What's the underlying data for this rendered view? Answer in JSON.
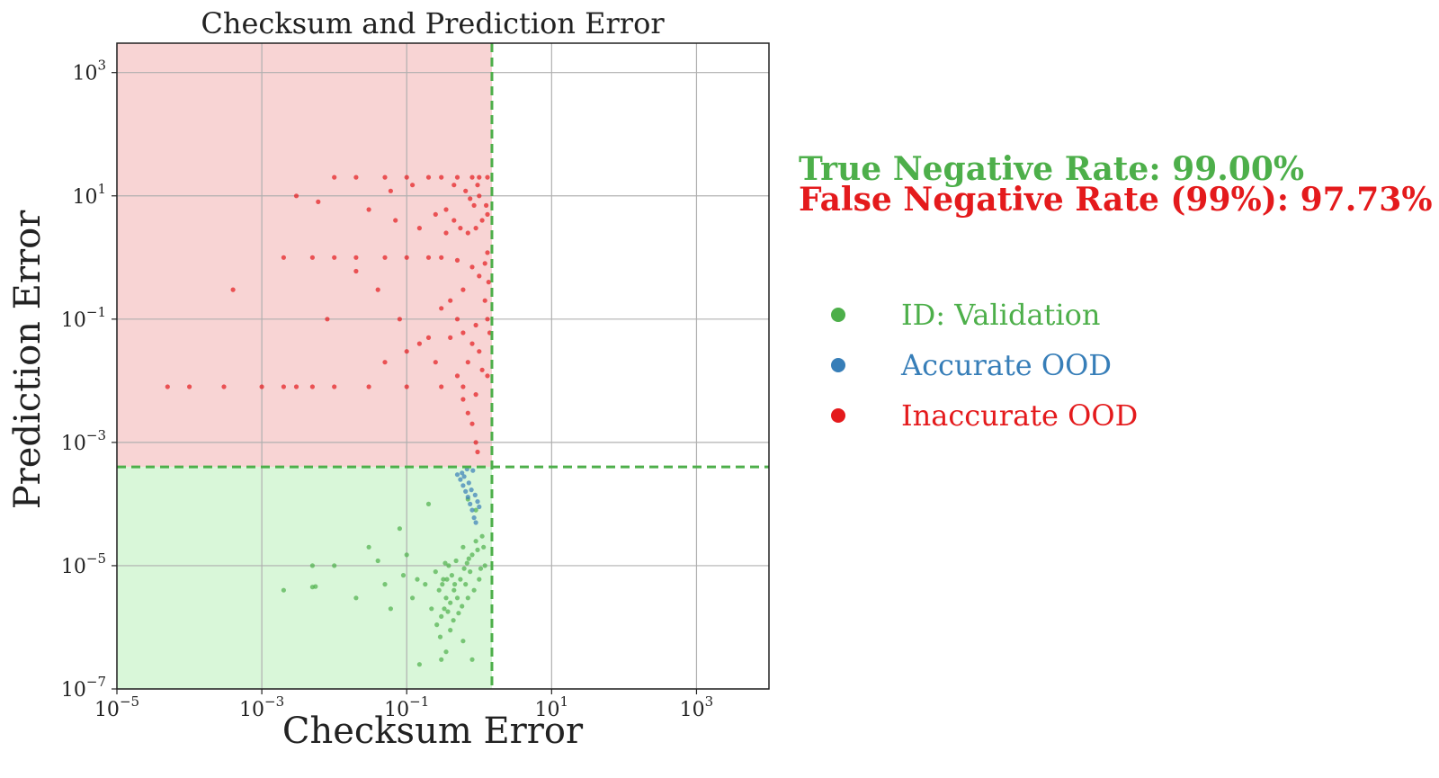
{
  "chart_data": {
    "type": "scatter",
    "title": "Checksum and Prediction Error",
    "xlabel": "Checksum Error",
    "ylabel": "Prediction Error",
    "xscale": "log",
    "yscale": "log",
    "xlim": [
      1e-05,
      10000
    ],
    "ylim": [
      1e-07,
      3000
    ],
    "x_ticks": [
      {
        "value": 1e-05,
        "base": "10",
        "exp": "−5"
      },
      {
        "value": 0.001,
        "base": "10",
        "exp": "−3"
      },
      {
        "value": 0.1,
        "base": "10",
        "exp": "−1"
      },
      {
        "value": 10,
        "base": "10",
        "exp": "1"
      },
      {
        "value": 1000,
        "base": "10",
        "exp": "3"
      }
    ],
    "y_ticks": [
      {
        "value": 1e-07,
        "base": "10",
        "exp": "−7"
      },
      {
        "value": 1e-05,
        "base": "10",
        "exp": "−5"
      },
      {
        "value": 0.001,
        "base": "10",
        "exp": "−3"
      },
      {
        "value": 0.1,
        "base": "10",
        "exp": "−1"
      },
      {
        "value": 10,
        "base": "10",
        "exp": "1"
      },
      {
        "value": 1000,
        "base": "10",
        "exp": "3"
      }
    ],
    "grid": true,
    "threshold_x": 1.5,
    "threshold_y": 0.0004,
    "regions": [
      {
        "name": "false-negative-region",
        "color": "#f8d4d4"
      },
      {
        "name": "true-negative-region",
        "color": "#d9f7d9"
      }
    ],
    "colors": {
      "validation": "#4daf4a",
      "accurate_ood": "#377eb8",
      "inaccurate_ood": "#e41a1c",
      "threshold": "#4daf4a"
    },
    "series": [
      {
        "name": "ID: Validation",
        "key": "validation",
        "points": [
          [
            0.12,
            3e-06
          ],
          [
            0.18,
            5e-06
          ],
          [
            0.22,
            2e-06
          ],
          [
            0.25,
            8e-06
          ],
          [
            0.28,
            4e-06
          ],
          [
            0.3,
            1.5e-06
          ],
          [
            0.32,
            6e-06
          ],
          [
            0.35,
            3e-06
          ],
          [
            0.38,
            1e-05
          ],
          [
            0.4,
            2.5e-06
          ],
          [
            0.42,
            7e-06
          ],
          [
            0.45,
            4e-06
          ],
          [
            0.48,
            1.2e-05
          ],
          [
            0.5,
            3e-06
          ],
          [
            0.55,
            6e-06
          ],
          [
            0.6,
            2e-05
          ],
          [
            0.65,
            5e-06
          ],
          [
            0.7,
            3e-06
          ],
          [
            0.75,
            8e-06
          ],
          [
            0.8,
            1.5e-05
          ],
          [
            0.85,
            4e-06
          ],
          [
            0.9,
            2.5e-05
          ],
          [
            1.0,
            6e-06
          ],
          [
            1.1,
            3e-05
          ],
          [
            1.2,
            1e-05
          ],
          [
            0.35,
            4e-07
          ],
          [
            0.3,
            3e-07
          ],
          [
            0.15,
            2.5e-07
          ],
          [
            0.8,
            3e-07
          ],
          [
            0.6,
            6e-07
          ],
          [
            0.005,
            4.5e-06
          ],
          [
            0.0055,
            4.6e-06
          ],
          [
            0.002,
            4e-06
          ],
          [
            0.01,
            1e-05
          ],
          [
            0.03,
            2e-05
          ],
          [
            0.05,
            5e-06
          ],
          [
            0.08,
            4e-05
          ],
          [
            0.1,
            1.5e-05
          ],
          [
            0.2,
            0.0001
          ],
          [
            0.7,
            0.00012
          ],
          [
            0.9,
            8e-05
          ],
          [
            0.33,
            2e-06
          ],
          [
            0.37,
            1.8e-06
          ],
          [
            0.4,
            9e-07
          ],
          [
            0.44,
            1.3e-06
          ],
          [
            0.52,
            1.7e-06
          ],
          [
            0.58,
            2.2e-06
          ],
          [
            0.62,
            9e-06
          ],
          [
            0.68,
            1.1e-05
          ],
          [
            0.72,
            1.3e-05
          ],
          [
            0.95,
            1.8e-05
          ],
          [
            1.05,
            9e-06
          ],
          [
            1.15,
            2e-05
          ],
          [
            0.26,
            1.1e-06
          ],
          [
            0.29,
            7e-07
          ],
          [
            0.31,
            5e-06
          ],
          [
            0.34,
            1.1e-05
          ],
          [
            0.36,
            6e-06
          ],
          [
            0.46,
            5e-06
          ],
          [
            0.005,
            1e-05
          ],
          [
            0.02,
            3e-06
          ],
          [
            0.04,
            1.2e-05
          ],
          [
            0.06,
            2e-06
          ],
          [
            0.09,
            7e-06
          ],
          [
            0.14,
            6e-06
          ]
        ]
      },
      {
        "name": "Accurate OOD",
        "key": "accurate_ood",
        "points": [
          [
            0.5,
            0.0003
          ],
          [
            0.55,
            0.00025
          ],
          [
            0.6,
            0.0002
          ],
          [
            0.65,
            0.00016
          ],
          [
            0.7,
            0.00013
          ],
          [
            0.75,
            0.0001
          ],
          [
            0.8,
            8e-05
          ],
          [
            0.85,
            6e-05
          ],
          [
            0.9,
            5e-05
          ],
          [
            0.58,
            0.00032
          ],
          [
            0.62,
            0.00028
          ],
          [
            0.72,
            0.00022
          ],
          [
            0.78,
            0.00017
          ],
          [
            0.88,
            0.00014
          ],
          [
            0.95,
            0.00011
          ],
          [
            1.0,
            9e-05
          ],
          [
            0.82,
            0.00035
          ],
          [
            0.68,
            0.00037
          ]
        ]
      },
      {
        "name": "Inaccurate OOD",
        "key": "inaccurate_ood",
        "points": [
          [
            0.0004,
            0.3
          ],
          [
            5e-05,
            0.008
          ],
          [
            0.0001,
            0.008
          ],
          [
            0.0003,
            0.008
          ],
          [
            0.001,
            0.008
          ],
          [
            0.002,
            0.008
          ],
          [
            0.003,
            0.008
          ],
          [
            0.005,
            0.008
          ],
          [
            0.01,
            0.008
          ],
          [
            0.03,
            0.008
          ],
          [
            0.1,
            0.008
          ],
          [
            0.3,
            0.008
          ],
          [
            0.6,
            0.008
          ],
          [
            0.9,
            0.006
          ],
          [
            0.002,
            1.0
          ],
          [
            0.005,
            1.0
          ],
          [
            0.01,
            1.0
          ],
          [
            0.02,
            1.0
          ],
          [
            0.05,
            1.0
          ],
          [
            0.1,
            1.0
          ],
          [
            0.2,
            1.0
          ],
          [
            0.3,
            1.0
          ],
          [
            0.5,
            0.9
          ],
          [
            0.8,
            0.7
          ],
          [
            1.0,
            0.5
          ],
          [
            1.2,
            0.8
          ],
          [
            1.3,
            1.2
          ],
          [
            0.01,
            20
          ],
          [
            0.02,
            20
          ],
          [
            0.05,
            20
          ],
          [
            0.1,
            20
          ],
          [
            0.2,
            20
          ],
          [
            0.3,
            20
          ],
          [
            0.5,
            20
          ],
          [
            0.8,
            20
          ],
          [
            1.0,
            20
          ],
          [
            1.3,
            20
          ],
          [
            0.003,
            10
          ],
          [
            0.006,
            8
          ],
          [
            0.03,
            6
          ],
          [
            0.07,
            4
          ],
          [
            0.15,
            3
          ],
          [
            0.35,
            2.5
          ],
          [
            0.45,
            4
          ],
          [
            0.55,
            3
          ],
          [
            0.7,
            2.5
          ],
          [
            0.9,
            3
          ],
          [
            1.1,
            4
          ],
          [
            1.3,
            5
          ],
          [
            0.6,
            0.06
          ],
          [
            0.8,
            0.04
          ],
          [
            1.0,
            0.03
          ],
          [
            0.5,
            0.1
          ],
          [
            0.4,
            0.2
          ],
          [
            0.3,
            0.15
          ],
          [
            0.2,
            0.05
          ],
          [
            0.1,
            0.03
          ],
          [
            0.05,
            0.02
          ],
          [
            0.7,
            0.02
          ],
          [
            1.1,
            0.015
          ],
          [
            0.9,
            0.08
          ],
          [
            1.2,
            0.2
          ],
          [
            1.3,
            0.1
          ],
          [
            0.6,
            0.3
          ],
          [
            0.4,
            0.05
          ],
          [
            0.8,
            0.002
          ],
          [
            0.9,
            0.001
          ],
          [
            0.95,
            0.0007
          ],
          [
            0.7,
            0.003
          ],
          [
            0.6,
            0.005
          ],
          [
            0.5,
            0.012
          ],
          [
            0.25,
            0.02
          ],
          [
            0.15,
            0.04
          ],
          [
            0.08,
            0.1
          ],
          [
            0.04,
            0.3
          ],
          [
            0.02,
            0.6
          ],
          [
            1.0,
            10
          ],
          [
            0.95,
            15
          ],
          [
            0.85,
            7
          ],
          [
            0.75,
            9
          ],
          [
            0.65,
            12
          ],
          [
            0.45,
            15
          ],
          [
            0.35,
            6
          ],
          [
            0.25,
            5
          ],
          [
            1.25,
            7
          ],
          [
            1.35,
            0.4
          ],
          [
            1.4,
            0.06
          ],
          [
            1.3,
            0.012
          ],
          [
            0.12,
            15
          ],
          [
            0.06,
            12
          ],
          [
            0.008,
            0.1
          ]
        ]
      }
    ],
    "legend": {
      "placement": "right",
      "items": [
        {
          "label": "ID: Validation",
          "key": "validation"
        },
        {
          "label": "Accurate OOD",
          "key": "accurate_ood"
        },
        {
          "label": "Inaccurate OOD",
          "key": "inaccurate_ood"
        }
      ]
    }
  },
  "annotations": {
    "true_negative_rate": "True Negative Rate: 99.00%",
    "false_negative_rate": "False Negative Rate (99%): 97.73%"
  }
}
